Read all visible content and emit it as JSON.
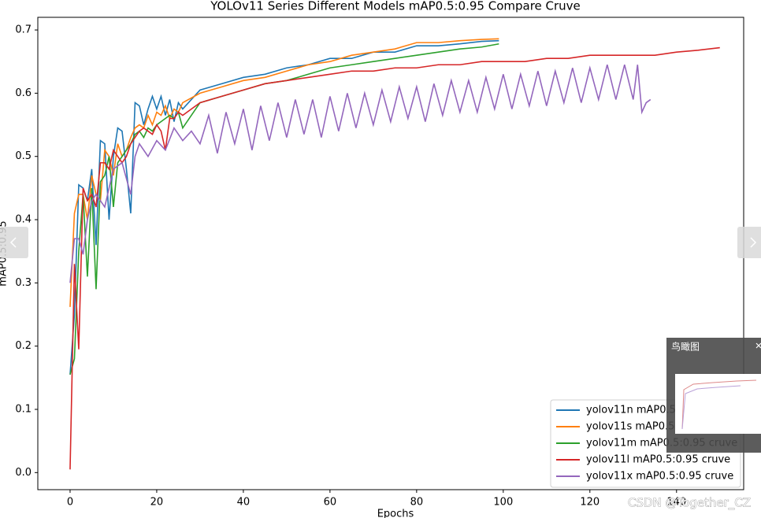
{
  "chart_data": {
    "type": "line",
    "title": "YOLOv11 Series Different Models mAP0.5:0.95 Compare Cruve",
    "x_label": "Epochs",
    "y_label": "mAP0.5:0.95",
    "xlim": [
      -7.45,
      155.5
    ],
    "ylim": [
      -0.027,
      0.72
    ],
    "xticks": [
      0,
      20,
      40,
      60,
      80,
      100,
      120,
      140
    ],
    "yticks": [
      {
        "value": 0,
        "label": "0.0"
      },
      0.1,
      0.2,
      0.3,
      0.4,
      0.5,
      0.6,
      0.7
    ],
    "legend": "lower right",
    "series": [
      {
        "name": "yolov11n mAP0.5:0.95 cruve",
        "color": "#1f77b4",
        "x": [
          0,
          1,
          2,
          3,
          4,
          5,
          6,
          7,
          8,
          9,
          10,
          11,
          12,
          13,
          14,
          15,
          16,
          17,
          18,
          19,
          20,
          21,
          22,
          23,
          24,
          25,
          26,
          30,
          35,
          40,
          45,
          50,
          55,
          60,
          65,
          70,
          75,
          80,
          85,
          90,
          95,
          99
        ],
        "values": [
          0.155,
          0.25,
          0.455,
          0.45,
          0.43,
          0.48,
          0.36,
          0.525,
          0.52,
          0.4,
          0.5,
          0.545,
          0.54,
          0.48,
          0.41,
          0.585,
          0.58,
          0.55,
          0.575,
          0.595,
          0.575,
          0.595,
          0.565,
          0.59,
          0.555,
          0.585,
          0.575,
          0.605,
          0.615,
          0.625,
          0.63,
          0.64,
          0.645,
          0.655,
          0.655,
          0.665,
          0.665,
          0.675,
          0.675,
          0.678,
          0.682,
          0.683
        ]
      },
      {
        "name": "yolov11s mAP0.5:0.95 cruve",
        "color": "#ff7f0e",
        "x": [
          0,
          1,
          2,
          3,
          4,
          5,
          6,
          7,
          8,
          9,
          10,
          11,
          12,
          13,
          14,
          15,
          16,
          17,
          18,
          19,
          20,
          21,
          22,
          23,
          24,
          25,
          26,
          30,
          35,
          40,
          45,
          50,
          55,
          60,
          65,
          70,
          75,
          80,
          85,
          90,
          95,
          99
        ],
        "values": [
          0.262,
          0.41,
          0.44,
          0.44,
          0.4,
          0.47,
          0.44,
          0.43,
          0.51,
          0.5,
          0.47,
          0.52,
          0.5,
          0.51,
          0.53,
          0.545,
          0.55,
          0.545,
          0.565,
          0.55,
          0.57,
          0.565,
          0.58,
          0.56,
          0.575,
          0.57,
          0.585,
          0.6,
          0.61,
          0.62,
          0.625,
          0.635,
          0.645,
          0.65,
          0.66,
          0.665,
          0.67,
          0.68,
          0.68,
          0.683,
          0.685,
          0.686
        ]
      },
      {
        "name": "yolov11m mAP0.5:0.95 cruve",
        "color": "#2ca02c",
        "x": [
          0,
          1,
          2,
          3,
          4,
          5,
          6,
          7,
          8,
          9,
          10,
          11,
          12,
          13,
          14,
          15,
          16,
          17,
          18,
          19,
          20,
          21,
          22,
          23,
          24,
          25,
          26,
          30,
          35,
          40,
          45,
          50,
          55,
          60,
          65,
          70,
          75,
          80,
          85,
          90,
          95,
          99
        ],
        "values": [
          0.155,
          0.18,
          0.35,
          0.44,
          0.31,
          0.45,
          0.29,
          0.46,
          0.47,
          0.5,
          0.42,
          0.49,
          0.5,
          0.51,
          0.52,
          0.535,
          0.54,
          0.53,
          0.545,
          0.54,
          0.55,
          0.555,
          0.56,
          0.565,
          0.56,
          0.57,
          0.545,
          0.585,
          0.595,
          0.605,
          0.615,
          0.62,
          0.63,
          0.64,
          0.645,
          0.65,
          0.655,
          0.66,
          0.665,
          0.67,
          0.673,
          0.678
        ]
      },
      {
        "name": "yolov11l mAP0.5:0.95 cruve",
        "color": "#d62728",
        "x": [
          0,
          1,
          2,
          3,
          4,
          5,
          6,
          7,
          8,
          9,
          10,
          11,
          12,
          13,
          14,
          15,
          16,
          17,
          18,
          19,
          20,
          21,
          22,
          23,
          24,
          25,
          26,
          30,
          35,
          40,
          45,
          50,
          55,
          60,
          65,
          70,
          75,
          80,
          85,
          90,
          95,
          100,
          105,
          110,
          115,
          120,
          125,
          130,
          135,
          140,
          145,
          150
        ],
        "values": [
          0.005,
          0.33,
          0.195,
          0.45,
          0.43,
          0.44,
          0.42,
          0.49,
          0.49,
          0.48,
          0.51,
          0.5,
          0.49,
          0.5,
          0.52,
          0.53,
          0.54,
          0.545,
          0.54,
          0.535,
          0.55,
          0.54,
          0.51,
          0.56,
          0.56,
          0.57,
          0.565,
          0.585,
          0.595,
          0.605,
          0.615,
          0.62,
          0.625,
          0.63,
          0.635,
          0.635,
          0.64,
          0.64,
          0.645,
          0.645,
          0.65,
          0.65,
          0.65,
          0.655,
          0.655,
          0.66,
          0.66,
          0.66,
          0.66,
          0.665,
          0.668,
          0.672
        ]
      },
      {
        "name": "yolov11x mAP0.5:0.95 cruve",
        "color": "#9467bd",
        "x": [
          0,
          1,
          2,
          3,
          4,
          5,
          6,
          7,
          8,
          10,
          12,
          14,
          15,
          16,
          18,
          20,
          22,
          24,
          26,
          28,
          30,
          32,
          34,
          36,
          38,
          40,
          42,
          44,
          46,
          48,
          50,
          52,
          54,
          56,
          58,
          60,
          62,
          64,
          66,
          68,
          70,
          72,
          74,
          76,
          78,
          80,
          82,
          84,
          86,
          88,
          90,
          92,
          94,
          96,
          98,
          100,
          102,
          104,
          106,
          108,
          110,
          112,
          114,
          116,
          118,
          120,
          122,
          124,
          126,
          128,
          130,
          131,
          132,
          133,
          134
        ],
        "values": [
          0.3,
          0.37,
          0.37,
          0.345,
          0.4,
          0.43,
          0.44,
          0.43,
          0.42,
          0.48,
          0.49,
          0.44,
          0.5,
          0.52,
          0.5,
          0.525,
          0.51,
          0.545,
          0.525,
          0.54,
          0.52,
          0.565,
          0.505,
          0.57,
          0.52,
          0.575,
          0.51,
          0.58,
          0.525,
          0.585,
          0.53,
          0.59,
          0.535,
          0.59,
          0.53,
          0.595,
          0.54,
          0.6,
          0.545,
          0.6,
          0.55,
          0.605,
          0.555,
          0.61,
          0.56,
          0.61,
          0.555,
          0.615,
          0.565,
          0.62,
          0.57,
          0.62,
          0.57,
          0.625,
          0.575,
          0.63,
          0.575,
          0.63,
          0.58,
          0.635,
          0.58,
          0.635,
          0.585,
          0.64,
          0.585,
          0.64,
          0.59,
          0.645,
          0.59,
          0.645,
          0.59,
          0.645,
          0.57,
          0.585,
          0.59
        ]
      }
    ]
  },
  "viewer": {
    "overview_title": "鸟瞰图"
  },
  "watermark": "CSDN @Together_CZ"
}
